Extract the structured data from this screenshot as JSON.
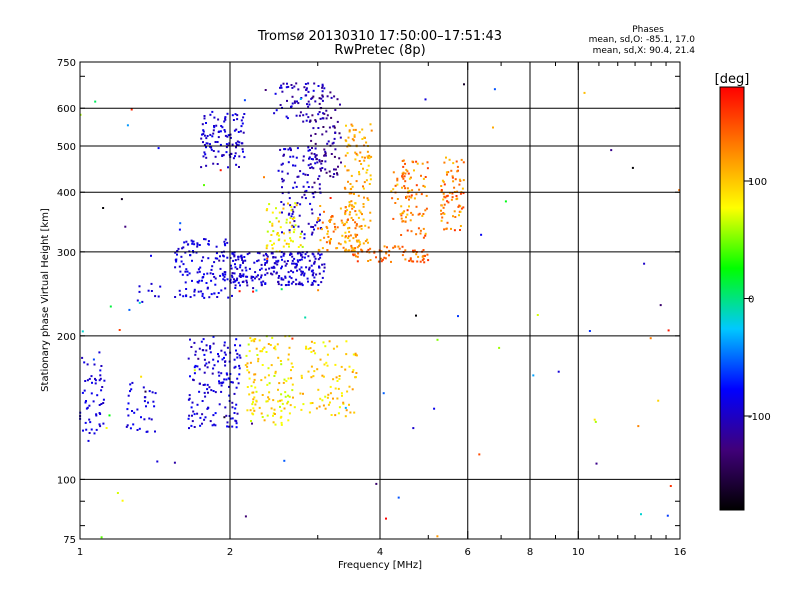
{
  "chart_data": {
    "type": "scatter",
    "title": "Tromsø 20130310 17:50:00–17:51:43",
    "subtitle": "RwPretec (8p)",
    "xlabel": "Frequency [MHz]",
    "ylabel": "Stationary phase Virtual Height [km]",
    "x_scale": "log",
    "y_scale": "log",
    "xlim": [
      1,
      16
    ],
    "ylim": [
      75,
      750
    ],
    "x_ticks": [
      1,
      2,
      4,
      6,
      8,
      10,
      16
    ],
    "x_tick_labels": [
      "1",
      "2",
      "4",
      "6",
      "8",
      "10",
      "16"
    ],
    "x_grid": [
      2,
      4,
      6,
      8,
      10
    ],
    "y_ticks": [
      75,
      100,
      200,
      300,
      400,
      500,
      600,
      750
    ],
    "y_tick_labels": [
      "75",
      "100",
      "200",
      "300",
      "400",
      "500",
      "600",
      "750"
    ],
    "y_grid": [
      100,
      200,
      300,
      400,
      500,
      600
    ],
    "grid": true,
    "stats": {
      "heading": "Phases",
      "line1": "mean, sd,O: -85.1, 17.0",
      "line2": "mean, sd,X:  90.4, 21.4"
    },
    "colorbar": {
      "label": "[deg]",
      "range": [
        -180,
        180
      ],
      "ticks": [
        100,
        0,
        -100
      ],
      "tick_labels": [
        "100",
        "0",
        "-100"
      ]
    },
    "color_scale": [
      "#000000",
      "#40007a",
      "#0000ff",
      "#00c8ff",
      "#00ff00",
      "#ffff00",
      "#ff8000",
      "#ff0000"
    ],
    "clusters": [
      {
        "x": [
          1.0,
          1.12
        ],
        "y": [
          120,
          185
        ],
        "phase": [
          -105,
          -80
        ],
        "n": 55
      },
      {
        "x": [
          1.2,
          1.42
        ],
        "y": [
          125,
          160
        ],
        "phase": [
          -100,
          -80
        ],
        "n": 35
      },
      {
        "x": [
          1.3,
          1.45
        ],
        "y": [
          230,
          260
        ],
        "phase": [
          -100,
          -85
        ],
        "n": 10
      },
      {
        "x": [
          1.65,
          2.1
        ],
        "y": [
          128,
          200
        ],
        "phase": [
          -110,
          -75
        ],
        "n": 160
      },
      {
        "x": [
          1.75,
          2.15
        ],
        "y": [
          450,
          590
        ],
        "phase": [
          -110,
          -80
        ],
        "n": 110
      },
      {
        "x": [
          1.55,
          2.05
        ],
        "y": [
          240,
          320
        ],
        "phase": [
          -100,
          -80
        ],
        "n": 140
      },
      {
        "x": [
          2.0,
          3.1
        ],
        "y": [
          255,
          300
        ],
        "phase": [
          -110,
          -80
        ],
        "n": 240
      },
      {
        "x": [
          2.5,
          3.05
        ],
        "y": [
          320,
          500
        ],
        "phase": [
          -115,
          -85
        ],
        "n": 120
      },
      {
        "x": [
          2.45,
          3.1
        ],
        "y": [
          560,
          680
        ],
        "phase": [
          -120,
          -85
        ],
        "n": 70
      },
      {
        "x": [
          2.9,
          3.35
        ],
        "y": [
          430,
          650
        ],
        "phase": [
          -140,
          -100
        ],
        "n": 80
      },
      {
        "x": [
          2.15,
          2.7
        ],
        "y": [
          130,
          200
        ],
        "phase": [
          60,
          115
        ],
        "n": 130
      },
      {
        "x": [
          2.75,
          3.6
        ],
        "y": [
          135,
          195
        ],
        "phase": [
          70,
          120
        ],
        "n": 90
      },
      {
        "x": [
          2.35,
          2.8
        ],
        "y": [
          300,
          380
        ],
        "phase": [
          60,
          110
        ],
        "n": 60
      },
      {
        "x": [
          3.0,
          3.6
        ],
        "y": [
          300,
          380
        ],
        "phase": [
          100,
          145
        ],
        "n": 80
      },
      {
        "x": [
          3.4,
          3.85
        ],
        "y": [
          300,
          560
        ],
        "phase": [
          90,
          135
        ],
        "n": 130
      },
      {
        "x": [
          3.5,
          5.0
        ],
        "y": [
          285,
          310
        ],
        "phase": [
          115,
          160
        ],
        "n": 70
      },
      {
        "x": [
          4.4,
          5.0
        ],
        "y": [
          320,
          470
        ],
        "phase": [
          100,
          160
        ],
        "n": 70
      },
      {
        "x": [
          5.3,
          5.9
        ],
        "y": [
          330,
          480
        ],
        "phase": [
          100,
          160
        ],
        "n": 80
      },
      {
        "x": [
          4.2,
          4.6
        ],
        "y": [
          340,
          450
        ],
        "phase": [
          90,
          150
        ],
        "n": 30
      },
      {
        "x": [
          1.0,
          16.0
        ],
        "y": [
          75,
          680
        ],
        "phase": [
          -180,
          180
        ],
        "n": 90
      }
    ]
  }
}
